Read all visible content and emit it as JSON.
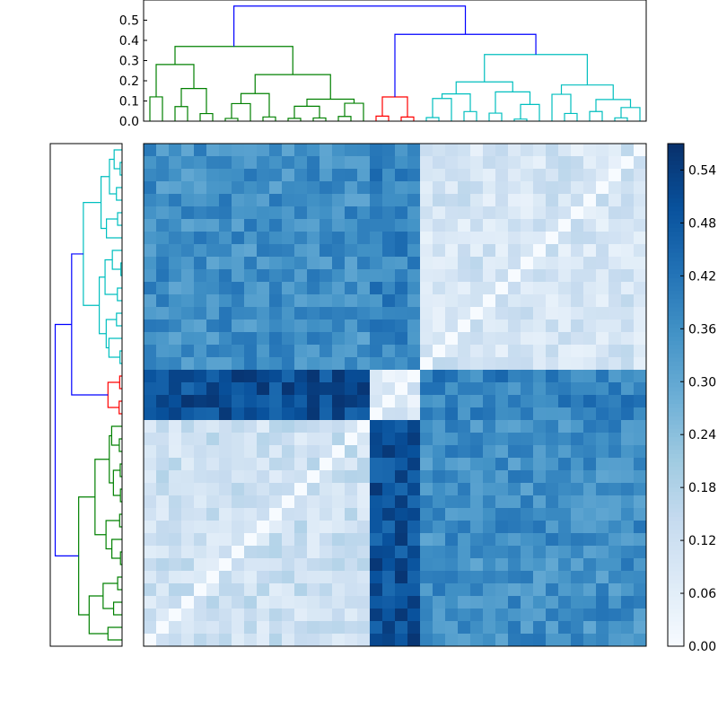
{
  "chart_data": [
    {
      "type": "dendrogram",
      "name": "top-dendrogram",
      "orientation": "top",
      "ylim": [
        0,
        0.6
      ],
      "yticks": [
        "0.0",
        "0.1",
        "0.2",
        "0.3",
        "0.4",
        "0.5"
      ],
      "n_leaves": 40,
      "link_colors": [
        "#008000",
        "#ff0000",
        "#00bfbf",
        "#0000ff"
      ],
      "cluster_sizes": [
        18,
        4,
        18
      ],
      "merge_heights": {
        "root": 0.57,
        "secondary": 0.43,
        "green_cluster": 0.37,
        "cyan_cluster": 0.33,
        "red_cluster": 0.12
      }
    },
    {
      "type": "dendrogram",
      "name": "left-dendrogram",
      "orientation": "left",
      "n_leaves": 40,
      "link_colors": [
        "#008000",
        "#ff0000",
        "#00bfbf",
        "#0000ff"
      ]
    },
    {
      "type": "heatmap",
      "name": "distance-matrix",
      "rows": 40,
      "cols": 40,
      "colormap": "Blues",
      "vmin": 0.0,
      "vmax": 0.57,
      "block_order": [
        "cyan",
        "red",
        "green"
      ],
      "colorbar_ticks": [
        "0.00",
        "0.06",
        "0.12",
        "0.18",
        "0.24",
        "0.30",
        "0.36",
        "0.42",
        "0.48",
        "0.54"
      ]
    }
  ]
}
